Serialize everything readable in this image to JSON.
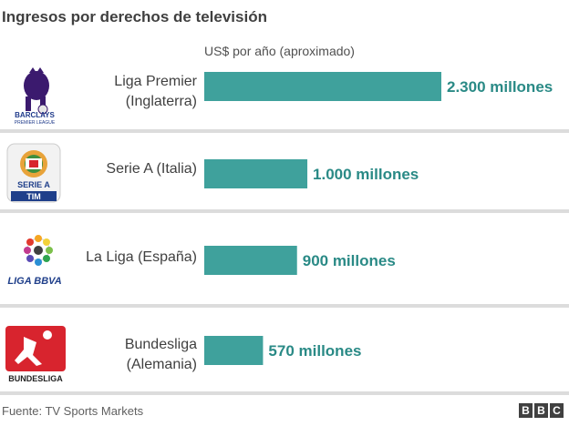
{
  "title": "Ingresos por derechos de televisión",
  "subtitle": "US$ por año (aproximado)",
  "source": "Fuente: TV Sports Markets",
  "brand": [
    "B",
    "B",
    "C"
  ],
  "logos": {
    "premier": [
      "BARCLAYS",
      "PREMIER LEAGUE"
    ],
    "seriea": [
      "SERIE A",
      "TIM"
    ],
    "laliga": "LIGA BBVA",
    "bundesliga": "BUNDESLIGA"
  },
  "colors": {
    "bar": "#3fa19c",
    "value_text": "#2a8a86",
    "separator": "#dcdcdc"
  },
  "chart_data": {
    "type": "bar",
    "orientation": "horizontal",
    "title": "Ingresos por derechos de televisión",
    "subtitle": "US$ por año (aproximado)",
    "categories": [
      [
        "Liga Premier",
        "(Inglaterra)"
      ],
      [
        "Serie A (Italia)"
      ],
      [
        "La Liga (España)"
      ],
      [
        "Bundesliga",
        "(Alemania)"
      ]
    ],
    "values": [
      2300,
      1000,
      900,
      570
    ],
    "value_labels": [
      "2.300 millones",
      "1.000 millones",
      "900 millones",
      "570 millones"
    ],
    "xlim": [
      0,
      2300
    ],
    "grid": false,
    "legend": "none"
  }
}
